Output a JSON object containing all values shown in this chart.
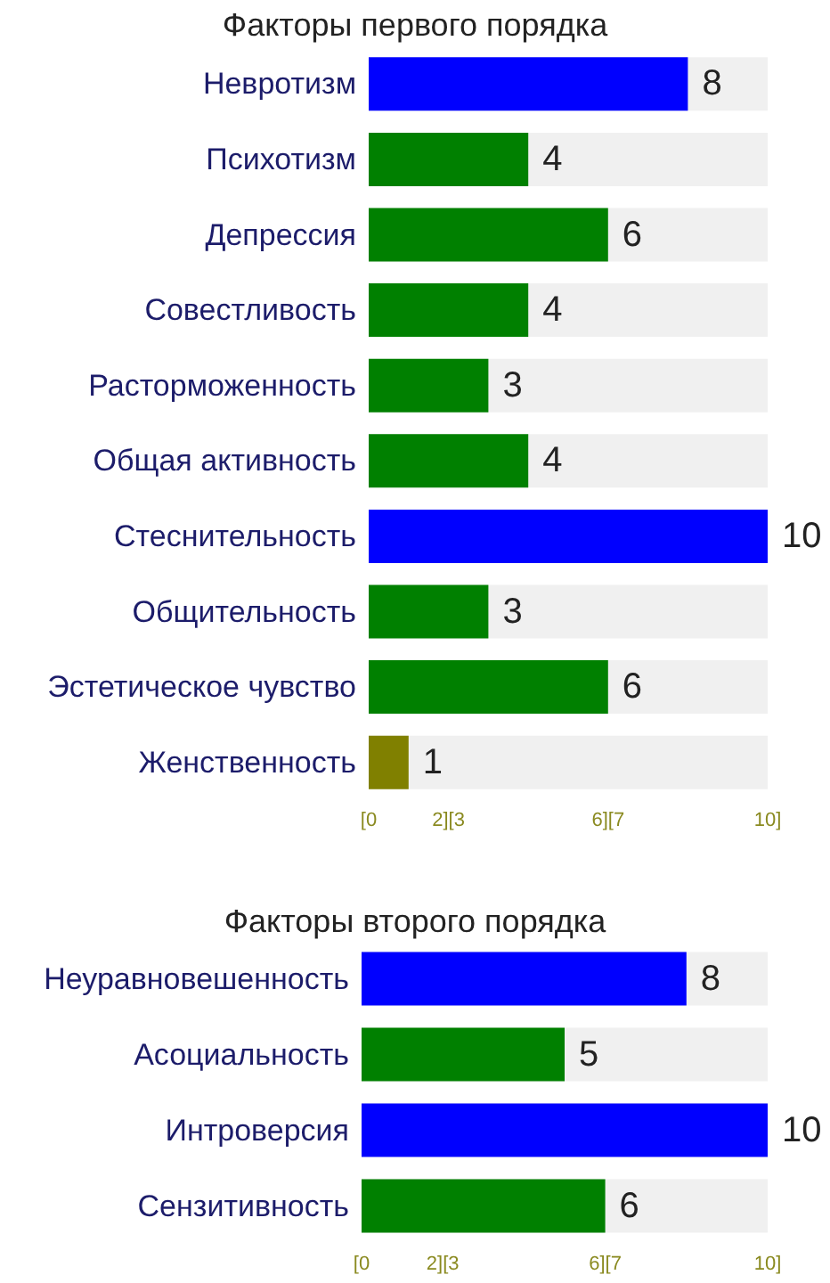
{
  "chart_data": [
    {
      "type": "bar",
      "orientation": "horizontal",
      "title": "Факторы первого порядка",
      "categories": [
        "Невротизм",
        "Психотизм",
        "Депрессия",
        "Совестливость",
        "Расторможенность",
        "Общая активность",
        "Стеснительность",
        "Общительность",
        "Эстетическое чувство",
        "Женственность"
      ],
      "values": [
        8,
        4,
        6,
        4,
        3,
        4,
        10,
        3,
        6,
        1
      ],
      "colors": [
        "#0000ff",
        "#008000",
        "#008000",
        "#008000",
        "#008000",
        "#008000",
        "#0000ff",
        "#008000",
        "#008000",
        "#808000"
      ],
      "xlim": [
        0,
        10
      ],
      "xticks": [
        {
          "value": 0,
          "label": "[0"
        },
        {
          "value": 2,
          "label": "2][3"
        },
        {
          "value": 6,
          "label": "6][7"
        },
        {
          "value": 10,
          "label": "10]"
        }
      ],
      "data_labels": true
    },
    {
      "type": "bar",
      "orientation": "horizontal",
      "title": "Факторы второго порядка",
      "categories": [
        "Неуравновешенность",
        "Асоциальность",
        "Интроверсия",
        "Сензитивность"
      ],
      "values": [
        8,
        5,
        10,
        6
      ],
      "colors": [
        "#0000ff",
        "#008000",
        "#0000ff",
        "#008000"
      ],
      "xlim": [
        0,
        10
      ],
      "xticks": [
        {
          "value": 0,
          "label": "[0"
        },
        {
          "value": 2,
          "label": "2][3"
        },
        {
          "value": 6,
          "label": "6][7"
        },
        {
          "value": 10,
          "label": "10]"
        }
      ],
      "data_labels": true
    }
  ]
}
